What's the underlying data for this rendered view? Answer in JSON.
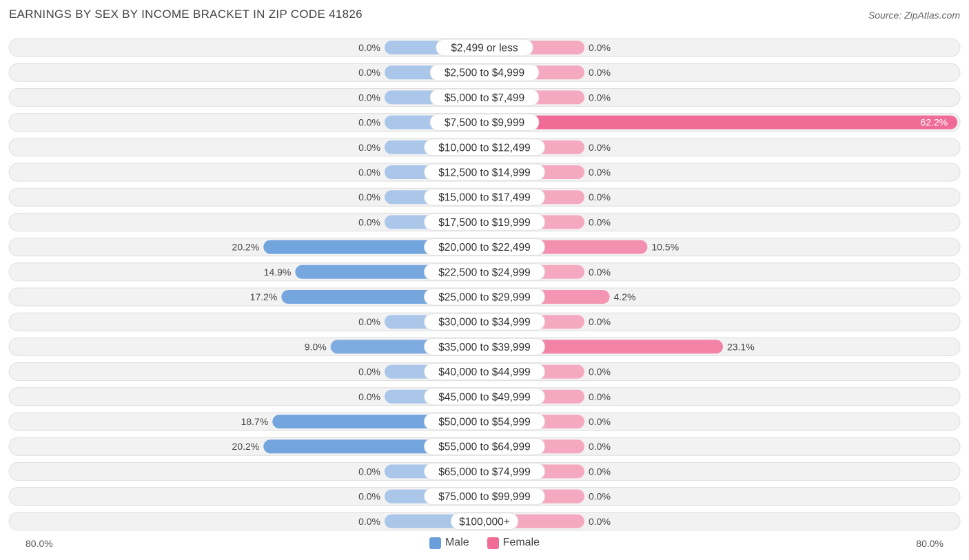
{
  "title": "EARNINGS BY SEX BY INCOME BRACKET IN ZIP CODE 41826",
  "source": "Source: ZipAtlas.com",
  "colors": {
    "male": "#6a9fdc",
    "male_light": "#aac7ea",
    "female": "#f06b95",
    "female_light": "#f5a9c1"
  },
  "legend": {
    "male": "Male",
    "female": "Female"
  },
  "axis": {
    "left_label": "80.0%",
    "right_label": "80.0%"
  },
  "chart_data": {
    "type": "bar",
    "orientation": "diverging-horizontal",
    "title": "EARNINGS BY SEX BY INCOME BRACKET IN ZIP CODE 41826",
    "xlim": [
      -80,
      80
    ],
    "categories": [
      "$2,499 or less",
      "$2,500 to $4,999",
      "$5,000 to $7,499",
      "$7,500 to $9,999",
      "$10,000 to $12,499",
      "$12,500 to $14,999",
      "$15,000 to $17,499",
      "$17,500 to $19,999",
      "$20,000 to $22,499",
      "$22,500 to $24,999",
      "$25,000 to $29,999",
      "$30,000 to $34,999",
      "$35,000 to $39,999",
      "$40,000 to $44,999",
      "$45,000 to $49,999",
      "$50,000 to $54,999",
      "$55,000 to $64,999",
      "$65,000 to $74,999",
      "$75,000 to $99,999",
      "$100,000+"
    ],
    "series": [
      {
        "name": "Male",
        "values": [
          0,
          0,
          0,
          0,
          0,
          0,
          0,
          0,
          20.2,
          14.9,
          17.2,
          0,
          9.0,
          0,
          0,
          18.7,
          20.2,
          0,
          0,
          0
        ],
        "labels": [
          "0.0%",
          "0.0%",
          "0.0%",
          "0.0%",
          "0.0%",
          "0.0%",
          "0.0%",
          "0.0%",
          "20.2%",
          "14.9%",
          "17.2%",
          "0.0%",
          "9.0%",
          "0.0%",
          "0.0%",
          "18.7%",
          "20.2%",
          "0.0%",
          "0.0%",
          "0.0%"
        ]
      },
      {
        "name": "Female",
        "values": [
          0,
          0,
          0,
          62.2,
          0,
          0,
          0,
          0,
          10.5,
          0,
          4.2,
          0,
          23.1,
          0,
          0,
          0,
          0,
          0,
          0,
          0
        ],
        "labels": [
          "0.0%",
          "0.0%",
          "0.0%",
          "62.2%",
          "0.0%",
          "0.0%",
          "0.0%",
          "0.0%",
          "10.5%",
          "0.0%",
          "4.2%",
          "0.0%",
          "23.1%",
          "0.0%",
          "0.0%",
          "0.0%",
          "0.0%",
          "0.0%",
          "0.0%",
          "0.0%"
        ]
      }
    ],
    "legend": [
      "Male",
      "Female"
    ]
  }
}
